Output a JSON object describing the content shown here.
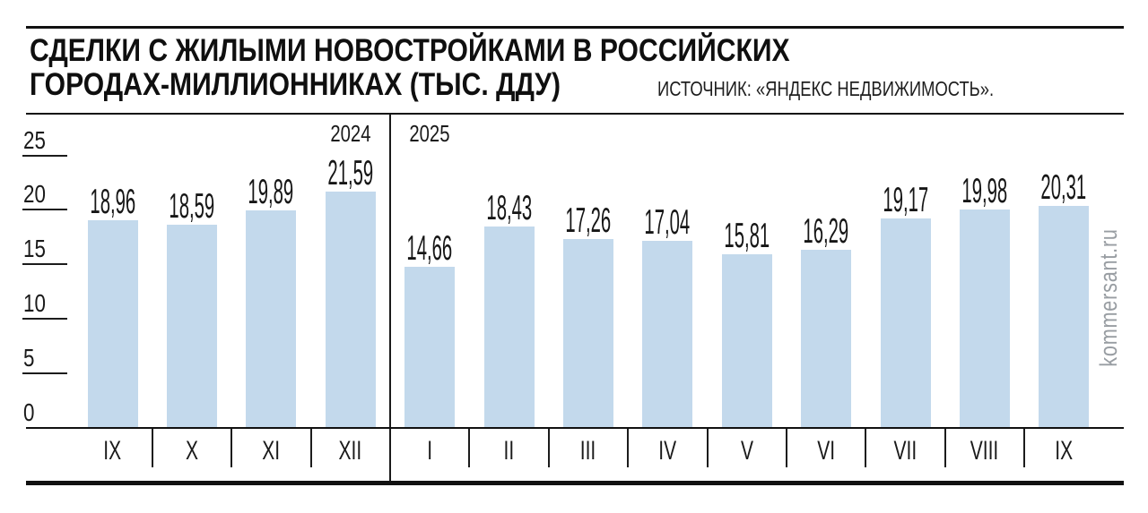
{
  "header": {
    "title_line1": "СДЕЛКИ С ЖИЛЫМИ НОВОСТРОЙКАМИ В РОССИЙСКИХ",
    "title_line2": "ГОРОДАХ-МИЛЛИОННИКАХ (ТЫС. ДДУ)",
    "source": "ИСТОЧНИК: «ЯНДЕКС НЕДВИЖИМОСТЬ»."
  },
  "watermark": "kommersant.ru",
  "colors": {
    "bar": "#c3d9ec",
    "line": "#111111",
    "text": "#1a1a1a",
    "watermark": "#989da2"
  },
  "chart_data": {
    "type": "bar",
    "title": "СДЕЛКИ С ЖИЛЫМИ НОВОСТРОЙКАМИ В РОССИЙСКИХ ГОРОДАХ-МИЛЛИОННИКАХ (ТЫС. ДДУ)",
    "source": "ИСТОЧНИК: «ЯНДЕКС НЕДВИЖИМОСТЬ».",
    "ylim": [
      0,
      25
    ],
    "yticks": [
      25,
      20,
      15,
      10,
      5,
      0
    ],
    "grid": false,
    "legend": false,
    "groups": [
      {
        "year": "2024",
        "categories": [
          "IX",
          "X",
          "XI",
          "XII"
        ],
        "values": [
          18.96,
          18.59,
          19.89,
          21.59
        ],
        "value_labels": [
          "18,96",
          "18,59",
          "19,89",
          "21,59"
        ]
      },
      {
        "year": "2025",
        "categories": [
          "I",
          "II",
          "III",
          "IV",
          "V",
          "VI",
          "VII",
          "VIII",
          "IX"
        ],
        "values": [
          14.66,
          18.43,
          17.26,
          17.04,
          15.81,
          16.29,
          19.17,
          19.98,
          20.31
        ],
        "value_labels": [
          "14,66",
          "18,43",
          "17,26",
          "17,04",
          "15,81",
          "16,29",
          "19,17",
          "19,98",
          "20,31"
        ]
      }
    ]
  }
}
